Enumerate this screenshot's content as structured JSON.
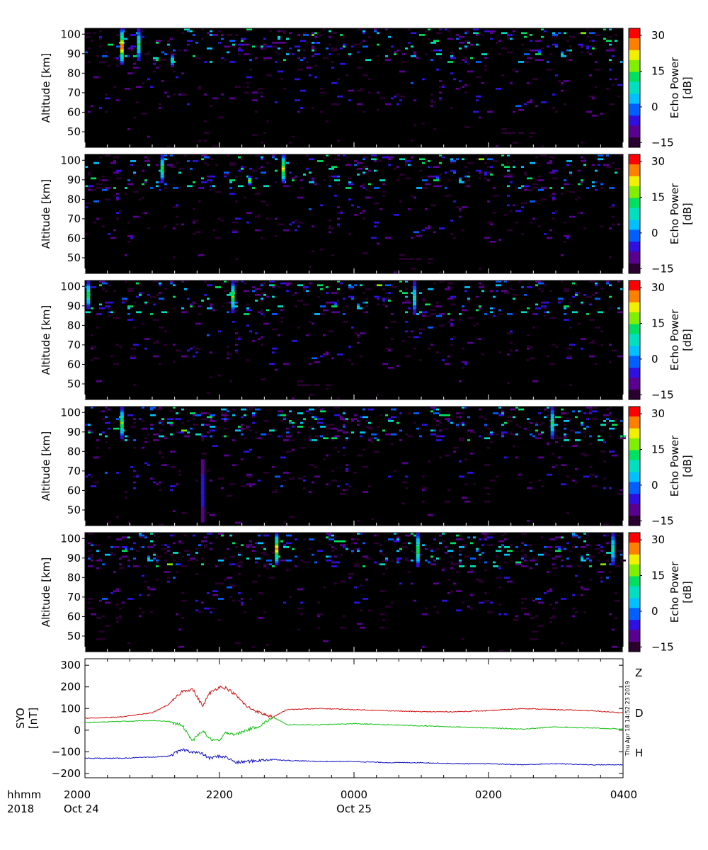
{
  "colors": {
    "panel_background": "#000000",
    "Z": "#d01010",
    "D": "#10c010",
    "H": "#1010c0"
  },
  "colorbar": {
    "label_line1": "Echo Power",
    "label_line2": "[dB]",
    "ticks": [
      "30",
      "15",
      "0",
      "−15"
    ],
    "tick_values": [
      30,
      15,
      0,
      -15
    ],
    "range": [
      -17,
      33
    ],
    "colormap": [
      "#2a0030",
      "#5a0090",
      "#3010e0",
      "#0060ff",
      "#00c0ff",
      "#00e0c0",
      "#00e060",
      "#80f000",
      "#f0f000",
      "#ff8000",
      "#ff0000"
    ]
  },
  "x_axis": {
    "corner_line1": "hhmm",
    "corner_line2": "2018",
    "ticks": [
      {
        "hhmm": "2000",
        "date": "Oct 24",
        "hour": 20
      },
      {
        "hhmm": "2200",
        "date": "",
        "hour": 22
      },
      {
        "hhmm": "0000",
        "date": "Oct 25",
        "hour": 24
      },
      {
        "hhmm": "0200",
        "date": "",
        "hour": 26
      },
      {
        "hhmm": "0400",
        "date": "",
        "hour": 28
      }
    ],
    "range_hours": [
      20,
      28
    ]
  },
  "timestamp": "Thu Apr 18 14:52:23 2019",
  "chart_data": [
    {
      "type": "heatmap",
      "panel": 1,
      "ylabel": "Altitude [km]",
      "yticks": [
        50,
        60,
        70,
        80,
        90,
        100
      ],
      "ylim": [
        42,
        103
      ],
      "zlabel": "Echo Power [dB]",
      "zlim": [
        -15,
        30
      ],
      "layers": [
        {
          "alt_range": [
            85,
            103
          ],
          "density": 0.1,
          "power_range": [
            -15,
            15
          ]
        },
        {
          "alt_range": [
            60,
            85
          ],
          "density": 0.03,
          "power_range": [
            -15,
            -3
          ]
        },
        {
          "alt_range": [
            42,
            60
          ],
          "density": 0.01,
          "power_range": [
            -15,
            -10
          ]
        }
      ],
      "hot_columns": [
        {
          "hour": 20.55,
          "alt_range": [
            84,
            103
          ],
          "peak_db": 28
        },
        {
          "hour": 20.8,
          "alt_range": [
            86,
            103
          ],
          "peak_db": 12
        },
        {
          "hour": 21.3,
          "alt_range": [
            83,
            90
          ],
          "peak_db": 8
        }
      ]
    },
    {
      "type": "heatmap",
      "panel": 2,
      "ylabel": "Altitude [km]",
      "yticks": [
        50,
        60,
        70,
        80,
        90,
        100
      ],
      "ylim": [
        42,
        103
      ],
      "zlabel": "Echo Power [dB]",
      "zlim": [
        -15,
        30
      ],
      "layers": [
        {
          "alt_range": [
            85,
            103
          ],
          "density": 0.1,
          "power_range": [
            -15,
            15
          ]
        },
        {
          "alt_range": [
            60,
            85
          ],
          "density": 0.03,
          "power_range": [
            -15,
            -3
          ]
        },
        {
          "alt_range": [
            42,
            60
          ],
          "density": 0.01,
          "power_range": [
            -15,
            -10
          ]
        }
      ],
      "hot_columns": [
        {
          "hour": 21.15,
          "alt_range": [
            88,
            103
          ],
          "peak_db": 14
        },
        {
          "hour": 22.95,
          "alt_range": [
            88,
            103
          ],
          "peak_db": 22
        },
        {
          "hour": 22.45,
          "alt_range": [
            87,
            92
          ],
          "peak_db": 18
        }
      ]
    },
    {
      "type": "heatmap",
      "panel": 3,
      "ylabel": "Altitude [km]",
      "yticks": [
        50,
        60,
        70,
        80,
        90,
        100
      ],
      "ylim": [
        42,
        103
      ],
      "zlabel": "Echo Power [dB]",
      "zlim": [
        -15,
        30
      ],
      "layers": [
        {
          "alt_range": [
            85,
            103
          ],
          "density": 0.1,
          "power_range": [
            -15,
            15
          ]
        },
        {
          "alt_range": [
            60,
            85
          ],
          "density": 0.03,
          "power_range": [
            -15,
            -3
          ]
        },
        {
          "alt_range": [
            42,
            60
          ],
          "density": 0.01,
          "power_range": [
            -15,
            -10
          ]
        }
      ],
      "hot_columns": [
        {
          "hour": 20.05,
          "alt_range": [
            88,
            103
          ],
          "peak_db": 14
        },
        {
          "hour": 22.2,
          "alt_range": [
            86,
            103
          ],
          "peak_db": 16
        },
        {
          "hour": 24.9,
          "alt_range": [
            85,
            103
          ],
          "peak_db": 8
        }
      ]
    },
    {
      "type": "heatmap",
      "panel": 4,
      "ylabel": "Altitude [km]",
      "yticks": [
        50,
        60,
        70,
        80,
        90,
        100
      ],
      "ylim": [
        42,
        103
      ],
      "zlabel": "Echo Power [dB]",
      "zlim": [
        -15,
        30
      ],
      "layers": [
        {
          "alt_range": [
            85,
            103
          ],
          "density": 0.12,
          "power_range": [
            -15,
            15
          ]
        },
        {
          "alt_range": [
            60,
            85
          ],
          "density": 0.03,
          "power_range": [
            -15,
            -3
          ]
        },
        {
          "alt_range": [
            42,
            60
          ],
          "density": 0.01,
          "power_range": [
            -15,
            -10
          ]
        }
      ],
      "hot_columns": [
        {
          "hour": 20.55,
          "alt_range": [
            86,
            103
          ],
          "peak_db": 16
        },
        {
          "hour": 21.75,
          "alt_range": [
            44,
            76
          ],
          "peak_db": -5
        },
        {
          "hour": 26.95,
          "alt_range": [
            86,
            103
          ],
          "peak_db": 12
        }
      ]
    },
    {
      "type": "heatmap",
      "panel": 5,
      "ylabel": "Altitude [km]",
      "yticks": [
        50,
        60,
        70,
        80,
        90,
        100
      ],
      "ylim": [
        42,
        103
      ],
      "zlabel": "Echo Power [dB]",
      "zlim": [
        -15,
        30
      ],
      "layers": [
        {
          "alt_range": [
            85,
            103
          ],
          "density": 0.12,
          "power_range": [
            -15,
            15
          ]
        },
        {
          "alt_range": [
            60,
            85
          ],
          "density": 0.03,
          "power_range": [
            -15,
            -3
          ]
        },
        {
          "alt_range": [
            42,
            60
          ],
          "density": 0.01,
          "power_range": [
            -15,
            -10
          ]
        }
      ],
      "hot_columns": [
        {
          "hour": 22.85,
          "alt_range": [
            86,
            103
          ],
          "peak_db": 24
        },
        {
          "hour": 24.95,
          "alt_range": [
            85,
            103
          ],
          "peak_db": 16
        },
        {
          "hour": 27.85,
          "alt_range": [
            86,
            103
          ],
          "peak_db": 10
        }
      ]
    },
    {
      "type": "line",
      "panel": 6,
      "ylabel": "SYO",
      "ylabel_unit": "[nT]",
      "yticks": [
        -200,
        -100,
        0,
        100,
        200,
        300
      ],
      "ylim": [
        -220,
        330
      ],
      "x_hours": [
        20.0,
        20.5,
        21.0,
        21.25,
        21.45,
        21.6,
        21.75,
        21.85,
        22.0,
        22.1,
        22.25,
        22.4,
        22.6,
        22.8,
        23.0,
        23.5,
        24.0,
        24.5,
        25.0,
        25.5,
        26.0,
        26.5,
        27.0,
        27.5,
        28.0
      ],
      "series": [
        {
          "name": "Z",
          "values": [
            55,
            60,
            80,
            120,
            180,
            190,
            110,
            170,
            200,
            195,
            160,
            110,
            80,
            60,
            95,
            100,
            95,
            90,
            85,
            85,
            90,
            100,
            95,
            90,
            80
          ]
        },
        {
          "name": "D",
          "values": [
            35,
            40,
            45,
            40,
            20,
            -50,
            0,
            -40,
            -50,
            -10,
            -20,
            0,
            20,
            60,
            25,
            25,
            30,
            25,
            20,
            15,
            10,
            5,
            15,
            10,
            5
          ]
        },
        {
          "name": "H",
          "values": [
            -130,
            -130,
            -125,
            -120,
            -90,
            -100,
            -110,
            -130,
            -120,
            -125,
            -150,
            -145,
            -140,
            -135,
            -140,
            -145,
            -145,
            -150,
            -150,
            -155,
            -155,
            -160,
            -155,
            -160,
            -160
          ]
        }
      ]
    }
  ]
}
